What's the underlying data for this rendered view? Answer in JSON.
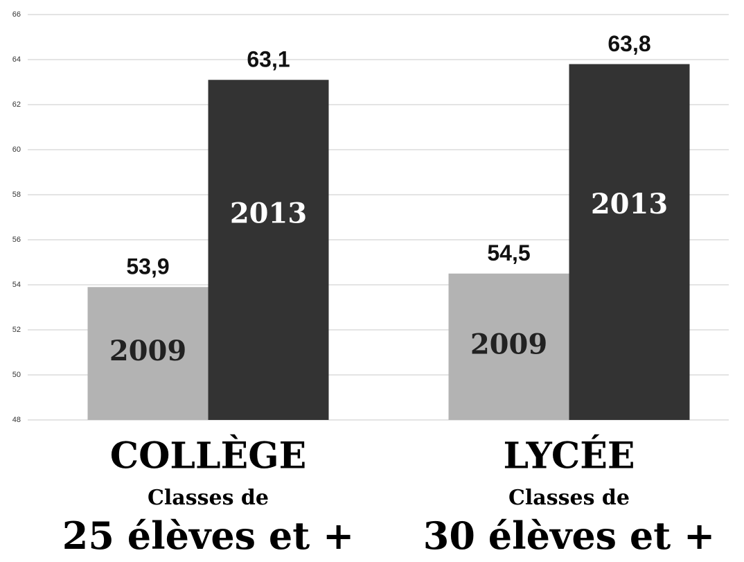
{
  "chart_data": {
    "type": "bar",
    "categories": [
      "COLLÈGE",
      "LYCÉE"
    ],
    "category_sublabels": [
      [
        "Classes de",
        "25 élèves et +"
      ],
      [
        "Classes de",
        "30 élèves et +"
      ]
    ],
    "series": [
      {
        "name": "2009",
        "color": "#b3b3b3",
        "values": [
          53.9,
          54.5
        ],
        "value_labels": [
          "53,9",
          "54,5"
        ]
      },
      {
        "name": "2013",
        "color": "#333333",
        "values": [
          63.1,
          63.8
        ],
        "value_labels": [
          "63,1",
          "63,8"
        ]
      }
    ],
    "ylim": [
      48,
      66
    ],
    "yticks": [
      48,
      50,
      52,
      54,
      56,
      58,
      60,
      62,
      64,
      66
    ],
    "grid": true
  }
}
